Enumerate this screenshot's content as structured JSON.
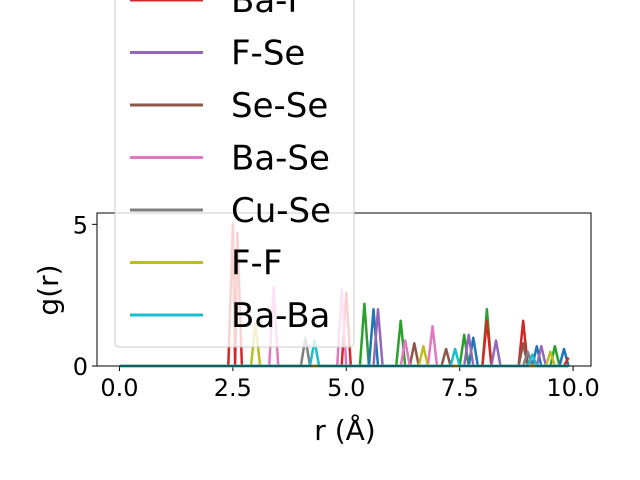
{
  "chart_data": {
    "type": "line",
    "xlabel": "r (Å)",
    "ylabel": "g(r)",
    "xlim": [
      -0.495,
      10.395
    ],
    "ylim": [
      0,
      5.4
    ],
    "xticks": [
      {
        "value": 0,
        "label": "0.0"
      },
      {
        "value": 2.5,
        "label": "2.5"
      },
      {
        "value": 5,
        "label": "5.0"
      },
      {
        "value": 7.5,
        "label": "7.5"
      },
      {
        "value": 10,
        "label": "10.0"
      }
    ],
    "yticks": [
      0,
      5
    ],
    "series": [
      {
        "color": "#2ca02c",
        "x": [
          0,
          5.3,
          5.4,
          5.5,
          6.1,
          6.2,
          6.3,
          7.5,
          7.6,
          7.7,
          8.0,
          8.1,
          8.2,
          9.5,
          9.6,
          9.7,
          9.9
        ],
        "values": [
          0,
          0,
          2.2,
          0,
          0,
          1.6,
          0,
          0,
          1.1,
          0,
          0,
          2.0,
          0,
          0,
          0.7,
          0,
          0
        ]
      },
      {
        "color": "#1f77b4",
        "x": [
          0,
          5.5,
          5.6,
          5.7,
          7.7,
          7.8,
          7.9,
          9.1,
          9.2,
          9.3,
          9.7,
          9.8,
          9.9
        ],
        "values": [
          0,
          0,
          2.0,
          0,
          0,
          1.0,
          0,
          0,
          0.7,
          0,
          0,
          0.6,
          0
        ]
      },
      {
        "name": "Ba-F",
        "color": "#d62728",
        "x": [
          0,
          2.4,
          2.5,
          2.55,
          2.6,
          2.7,
          4.9,
          5.0,
          5.1,
          8.0,
          8.1,
          8.2,
          8.8,
          8.9,
          9.0,
          9.8,
          9.9
        ],
        "values": [
          0,
          0,
          5.0,
          0,
          4.7,
          0,
          0,
          2.6,
          0,
          0,
          1.6,
          0,
          0,
          1.6,
          0,
          0,
          0.3
        ]
      },
      {
        "name": "F-Se",
        "color": "#9467bd",
        "x": [
          0,
          5.6,
          5.7,
          5.8,
          7.6,
          7.7,
          7.8,
          8.2,
          8.3,
          8.4,
          9.2,
          9.3,
          9.4,
          9.9
        ],
        "values": [
          0,
          0,
          2.0,
          0,
          0,
          1.1,
          0,
          0,
          0.9,
          0,
          0,
          0.7,
          0,
          0
        ]
      },
      {
        "name": "Se-Se",
        "color": "#8c564b",
        "x": [
          0,
          6.4,
          6.5,
          6.6,
          7.1,
          7.2,
          7.3,
          8.8,
          8.9,
          9.0,
          9.9
        ],
        "values": [
          0,
          0,
          0.8,
          0,
          0,
          0.6,
          0,
          0,
          0.8,
          0,
          0
        ]
      },
      {
        "name": "Ba-Se",
        "color": "#e377c2",
        "x": [
          0,
          3.3,
          3.4,
          3.5,
          4.8,
          4.9,
          5.0,
          6.2,
          6.3,
          6.4,
          6.8,
          6.9,
          7.0,
          9.9
        ],
        "values": [
          0,
          0,
          2.8,
          0,
          0,
          2.7,
          0,
          0,
          0.9,
          0,
          0,
          1.4,
          0,
          0
        ]
      },
      {
        "name": "Cu-Se",
        "color": "#7f7f7f",
        "x": [
          0,
          4.0,
          4.1,
          4.2,
          8.9,
          9.0,
          9.1,
          9.9
        ],
        "values": [
          0,
          0,
          1.0,
          0,
          0,
          0.5,
          0,
          0
        ]
      },
      {
        "name": "F-F",
        "color": "#bcbd22",
        "x": [
          0,
          2.9,
          3.0,
          3.1,
          6.6,
          6.7,
          6.8,
          9.4,
          9.5,
          9.6,
          9.9
        ],
        "values": [
          0,
          0,
          1.5,
          0,
          0,
          0.7,
          0,
          0,
          0.5,
          0,
          0
        ]
      },
      {
        "name": "Ba-Ba",
        "color": "#17becf",
        "x": [
          0,
          4.2,
          4.3,
          4.4,
          7.3,
          7.4,
          7.5,
          9.0,
          9.1,
          9.2,
          9.9
        ],
        "values": [
          0,
          0,
          0.9,
          0,
          0,
          0.6,
          0,
          0,
          0.4,
          0,
          0
        ]
      }
    ]
  }
}
